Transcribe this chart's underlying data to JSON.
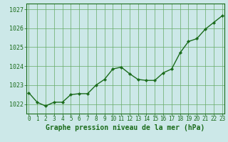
{
  "x": [
    0,
    1,
    2,
    3,
    4,
    5,
    6,
    7,
    8,
    9,
    10,
    11,
    12,
    13,
    14,
    15,
    16,
    17,
    18,
    19,
    20,
    21,
    22,
    23
  ],
  "y": [
    1022.6,
    1022.1,
    1021.9,
    1022.1,
    1022.1,
    1022.5,
    1022.55,
    1022.55,
    1023.0,
    1023.3,
    1023.85,
    1023.95,
    1023.6,
    1023.3,
    1023.25,
    1023.25,
    1023.65,
    1023.85,
    1024.7,
    1025.3,
    1025.45,
    1025.95,
    1026.3,
    1026.65
  ],
  "line_color": "#1a6b1a",
  "marker_color": "#1a6b1a",
  "bg_color": "#cce8e8",
  "grid_color": "#66aa66",
  "axis_color": "#1a6b1a",
  "title": "Graphe pression niveau de la mer (hPa)",
  "ylim": [
    1021.5,
    1027.3
  ],
  "yticks": [
    1022,
    1023,
    1024,
    1025,
    1026,
    1027
  ],
  "xticks": [
    0,
    1,
    2,
    3,
    4,
    5,
    6,
    7,
    8,
    9,
    10,
    11,
    12,
    13,
    14,
    15,
    16,
    17,
    18,
    19,
    20,
    21,
    22,
    23
  ],
  "title_fontsize": 7.0,
  "tick_fontsize": 6.0,
  "linewidth": 1.0,
  "markersize": 2.2
}
